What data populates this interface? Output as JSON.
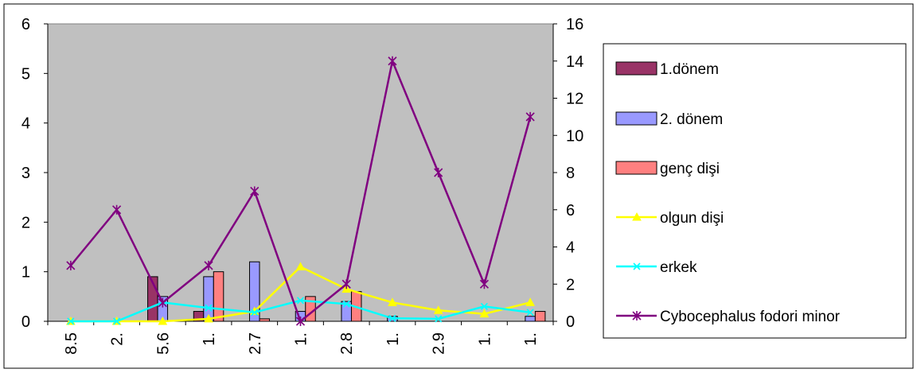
{
  "chart_data": {
    "type": "bar",
    "categories": [
      "8.5",
      "2.",
      "5.6",
      "1.",
      "2.7",
      "1.",
      "2.8",
      "1.",
      "2.9",
      "1.",
      "1."
    ],
    "bar_series": [
      {
        "name": "1.dönem",
        "color": "#993366",
        "values": [
          0,
          0,
          0.9,
          0.2,
          0,
          0,
          0,
          0,
          0,
          0,
          0
        ]
      },
      {
        "name": "2. dönem",
        "color": "#9999ff",
        "values": [
          0,
          0,
          0.5,
          0.9,
          1.2,
          0.2,
          0.4,
          0.1,
          0,
          0,
          0.1
        ]
      },
      {
        "name": "genç dişi",
        "color": "#ff8080",
        "values": [
          0,
          0,
          0,
          1.0,
          0.05,
          0.5,
          0.6,
          0,
          0,
          0,
          0.2
        ]
      }
    ],
    "line_series": [
      {
        "name": "olgun dişi",
        "color": "#ffff00",
        "marker": "triangle",
        "axis": "left",
        "values": [
          0,
          0,
          0,
          0.05,
          0.2,
          1.1,
          0.65,
          0.38,
          0.22,
          0.15,
          0.38
        ]
      },
      {
        "name": "erkek",
        "color": "#00ffff",
        "marker": "x",
        "axis": "left",
        "values": [
          0,
          0,
          0.38,
          0.27,
          0.18,
          0.42,
          0.35,
          0.06,
          0.05,
          0.3,
          0.18
        ]
      },
      {
        "name": "Cybocephalus fodori minor",
        "color": "#800080",
        "marker": "star",
        "axis": "right",
        "values": [
          3,
          6,
          1,
          3,
          7,
          0,
          2,
          14,
          8,
          2,
          11
        ]
      }
    ],
    "y_left": {
      "min": 0,
      "max": 6,
      "ticks": [
        0,
        1,
        2,
        3,
        4,
        5,
        6
      ]
    },
    "y_right": {
      "min": 0,
      "max": 16,
      "ticks": [
        0,
        2,
        4,
        6,
        8,
        10,
        12,
        14,
        16
      ]
    },
    "plot_background": "#c0c0c0",
    "legend_position": "right",
    "grid": false
  }
}
